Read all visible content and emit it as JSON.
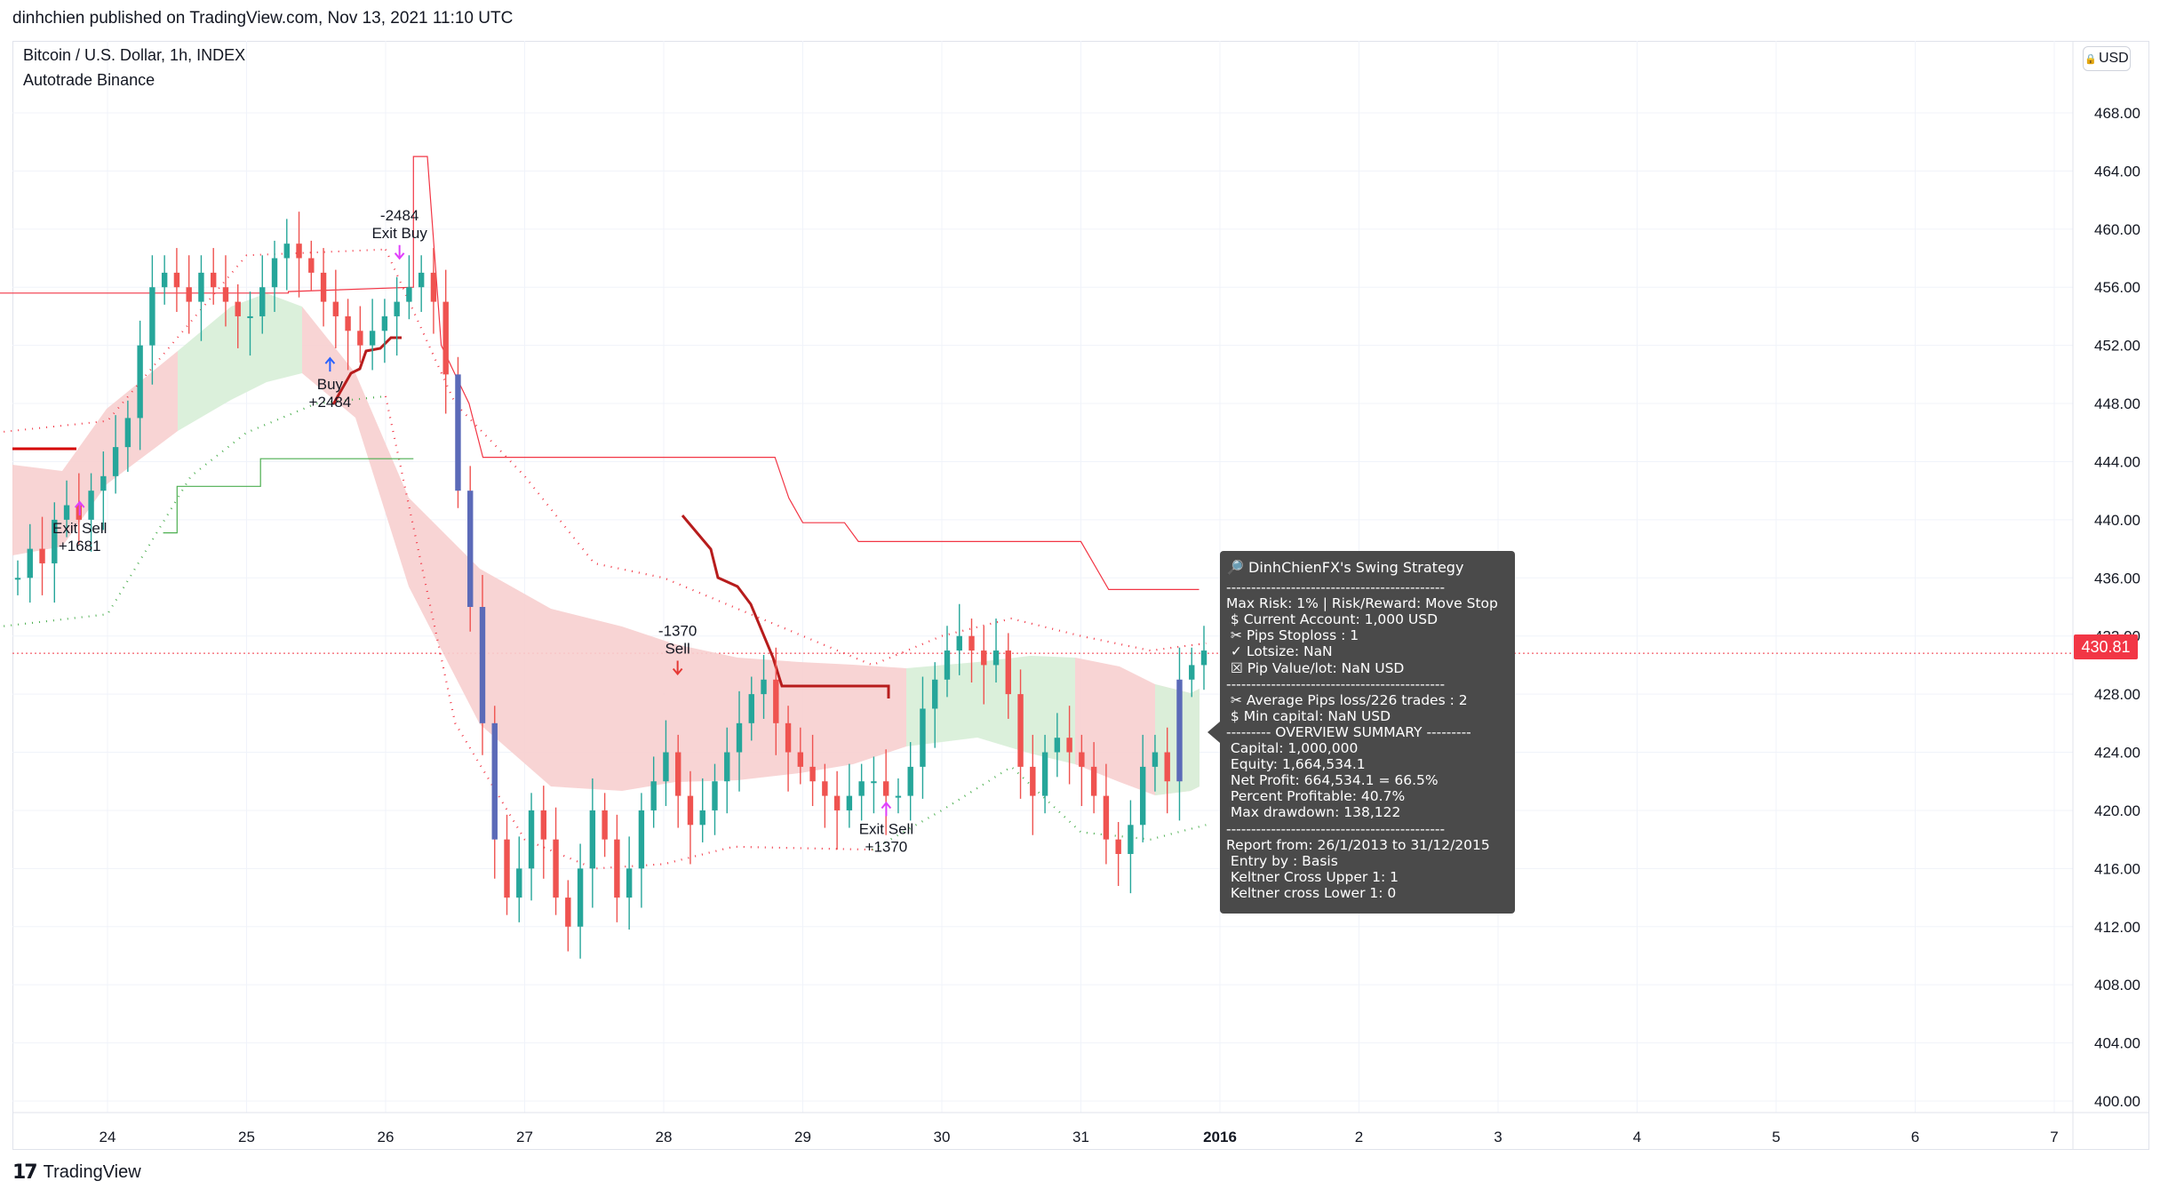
{
  "header": {
    "publish_line": "dinhchien published on TradingView.com, Nov 13, 2021 11:10 UTC"
  },
  "chart_header": {
    "symbol": "Bitcoin / U.S. Dollar, 1h, INDEX",
    "indicator": "Autotrade Binance",
    "currency": "USD",
    "currency_icon": "lock-icon"
  },
  "last_price": "430.81",
  "brand": {
    "name": "TradingView",
    "logo_text": "17"
  },
  "colors": {
    "up": "#26a69a",
    "down": "#ef5350",
    "line_red": "#f23645",
    "line_green": "#4caf50",
    "wick_dark": "#5b6ab8",
    "marker": "#e040fb",
    "band_red": "#f7cfcf",
    "band_green": "#d9efd9",
    "panel": "#4a4a4a"
  },
  "report": {
    "title": "DinhChienFX's Swing Strategy",
    "title_icon": "magnifier-icon",
    "lines": [
      "--------------------------------------------",
      "Max Risk: 1% | Risk/Reward: Move Stop",
      " $ Current Account: 1,000 USD",
      " ✂ Pips Stoploss : 1",
      " ✓ Lotsize: NaN",
      " ☒ Pip Value/lot: NaN USD",
      "--------------------------------------------",
      " ✂ Average Pips loss/226 trades : 2",
      " $ Min capital: NaN USD",
      "--------- OVERVIEW SUMMARY ---------",
      " Capital: 1,000,000",
      " Equity: 1,664,534.1",
      " Net Profit: 664,534.1 = 66.5%",
      " Percent Profitable: 40.7%",
      " Max drawdown: 138,122",
      "--------------------------------------------",
      "Report from: 26/1/2013 to 31/12/2015",
      " Entry by : Basis",
      " Keltner Cross Upper 1: 1",
      " Keltner cross Lower 1: 0"
    ]
  },
  "chart_data": {
    "type": "candlestick",
    "title": "Bitcoin / U.S. Dollar, 1h, INDEX",
    "ylim": [
      398,
      470
    ],
    "y_ticks": [
      "468.00",
      "464.00",
      "460.00",
      "456.00",
      "452.00",
      "448.00",
      "444.00",
      "440.00",
      "436.00",
      "432.00",
      "428.00",
      "424.00",
      "420.00",
      "416.00",
      "412.00",
      "408.00",
      "404.00",
      "400.00"
    ],
    "x_ticks": [
      "24",
      "25",
      "26",
      "27",
      "28",
      "29",
      "30",
      "31",
      "2016",
      "2",
      "3",
      "4",
      "5",
      "6",
      "7"
    ],
    "last_price": 430.81,
    "candle_closes": [
      436,
      438,
      437,
      440,
      441,
      440,
      442,
      443,
      445,
      447,
      452,
      456,
      457,
      456,
      455,
      457,
      456,
      455,
      454,
      454,
      456,
      458,
      459,
      458,
      457,
      455,
      454,
      453,
      452,
      453,
      454,
      455,
      456,
      457,
      455,
      450,
      442,
      434,
      426,
      418,
      414,
      416,
      420,
      418,
      414,
      412,
      416,
      420,
      418,
      414,
      416,
      420,
      422,
      424,
      421,
      419,
      420,
      422,
      424,
      426,
      428,
      429,
      426,
      424,
      423,
      422,
      421,
      420,
      421,
      422,
      422,
      421,
      421,
      423,
      427,
      429,
      431,
      432,
      431,
      430,
      431,
      428,
      423,
      421,
      424,
      425,
      424,
      423,
      421,
      418,
      417,
      419,
      423,
      424,
      422,
      429,
      430,
      431
    ],
    "keltner_upper": [
      {
        "x": "23",
        "y": 445.8
      },
      {
        "x": "24",
        "y": 446.8
      },
      {
        "x": "25",
        "y": 458.2
      },
      {
        "x": "26",
        "y": 458.6
      },
      {
        "x": "26.5",
        "y": 448
      },
      {
        "x": "27",
        "y": 443
      },
      {
        "x": "27.5",
        "y": 437
      },
      {
        "x": "28",
        "y": 436
      },
      {
        "x": "28.5",
        "y": 434
      },
      {
        "x": "29",
        "y": 432
      },
      {
        "x": "29.5",
        "y": 430
      },
      {
        "x": "30",
        "y": 432
      },
      {
        "x": "30.5",
        "y": 433.2
      },
      {
        "x": "31",
        "y": 432
      },
      {
        "x": "31.5",
        "y": 431
      },
      {
        "x": "31.9",
        "y": 431.5
      }
    ],
    "keltner_lower": [
      {
        "x": "23",
        "y": 432.4
      },
      {
        "x": "24",
        "y": 433.5
      },
      {
        "x": "24.6",
        "y": 443
      },
      {
        "x": "25",
        "y": 446
      },
      {
        "x": "25.5",
        "y": 448
      },
      {
        "x": "26",
        "y": 448.5
      },
      {
        "x": "26.5",
        "y": 426
      },
      {
        "x": "27",
        "y": 418
      },
      {
        "x": "27.5",
        "y": 416
      },
      {
        "x": "28",
        "y": 416.3
      },
      {
        "x": "28.5",
        "y": 417.5
      },
      {
        "x": "29",
        "y": 417.4
      },
      {
        "x": "29.5",
        "y": 417.3
      },
      {
        "x": "30",
        "y": 420
      },
      {
        "x": "30.5",
        "y": 423
      },
      {
        "x": "31",
        "y": 418.5
      },
      {
        "x": "31.5",
        "y": 418
      },
      {
        "x": "31.9",
        "y": 419
      }
    ],
    "stop_upper": [
      {
        "x": "23",
        "y": 455.6
      },
      {
        "x": "25.3",
        "y": 455.6
      },
      {
        "x": "25.3",
        "y": 455.7
      },
      {
        "x": "26.2",
        "y": 456
      },
      {
        "x": "26.2",
        "y": 465
      },
      {
        "x": "26.3",
        "y": 465
      },
      {
        "x": "26.4",
        "y": 452
      },
      {
        "x": "26.6",
        "y": 448
      },
      {
        "x": "26.7",
        "y": 444.3
      },
      {
        "x": "28.8",
        "y": 444.3
      },
      {
        "x": "28.9",
        "y": 441.5
      },
      {
        "x": "29",
        "y": 439.8
      },
      {
        "x": "29.3",
        "y": 439.8
      },
      {
        "x": "29.4",
        "y": 438.5
      },
      {
        "x": "31",
        "y": 438.5
      },
      {
        "x": "31.2",
        "y": 435.2
      },
      {
        "x": "31.85",
        "y": 435.2
      }
    ],
    "stop_lower": [
      {
        "x": "24.4",
        "y": 439.1
      },
      {
        "x": "24.5",
        "y": 439.1
      },
      {
        "x": "24.5",
        "y": 442.3
      },
      {
        "x": "25.1",
        "y": 442.3
      },
      {
        "x": "25.1",
        "y": 444.2
      },
      {
        "x": "26.2",
        "y": 444.2
      }
    ],
    "trades": [
      {
        "label": "Exit Sell",
        "value": "+1681",
        "x": "23.8",
        "y": 441.4
      },
      {
        "label": "Buy",
        "value": "+2484",
        "x": "25.6",
        "y": 451.3
      },
      {
        "label": "Exit Buy",
        "value": "-2484",
        "x": "26.1",
        "y": 457.8
      },
      {
        "label": "Sell",
        "value": "-1370",
        "x": "28.1",
        "y": 429.2
      },
      {
        "label": "Exit Sell",
        "value": "+1370",
        "x": "29.6",
        "y": 420.7
      }
    ]
  }
}
